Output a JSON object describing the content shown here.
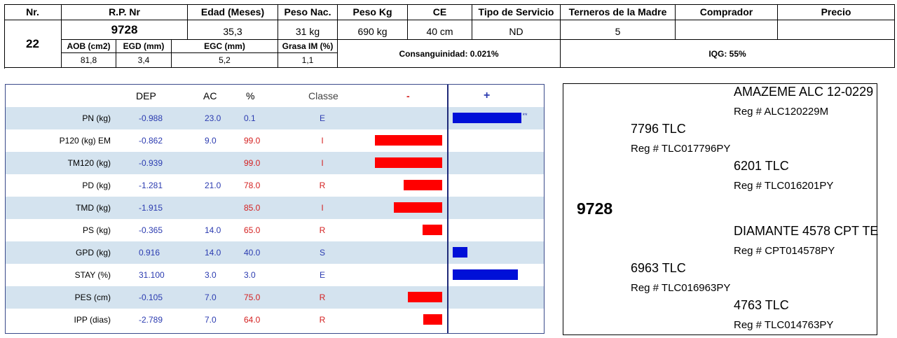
{
  "lot": {
    "headers": {
      "nr": "Nr.",
      "rp": "R.P. Nr",
      "edad": "Edad (Meses)",
      "peso_nac": "Peso Nac.",
      "peso_kg": "Peso Kg",
      "ce": "CE",
      "tipo_servicio": "Tipo de Servicio",
      "terneros": "Terneros de la Madre",
      "comprador": "Comprador",
      "precio": "Precio"
    },
    "nr": "22",
    "rp": "9728",
    "edad": "35,3",
    "peso_nac": "31 kg",
    "peso_kg": "690 kg",
    "ce": "40 cm",
    "tipo_servicio": "ND",
    "terneros": "5",
    "comprador": "",
    "precio": "",
    "sub_headers": {
      "aob": "AOB (cm2)",
      "egd": "EGD (mm)",
      "egc": "EGC (mm)",
      "grasa": "Grasa IM (%)"
    },
    "aob": "81,8",
    "egd": "3,4",
    "egc": "5,2",
    "grasa": "1,1",
    "consanguinidad": "Consanguinidad: 0.021%",
    "iqg": "IQG: 55%"
  },
  "epd": {
    "headers": {
      "dep": "DEP",
      "ac": "AC",
      "pct": "%",
      "classe": "Classe",
      "minus": "-",
      "plus": "+"
    },
    "rows": [
      {
        "trait": "PN (kg)",
        "dep": "-0.988",
        "ac": "23.0",
        "pct": "0.1",
        "classe": "E",
        "bar": 0.65,
        "note": "**",
        "color": "blue"
      },
      {
        "trait": "P120 (kg) EM",
        "dep": "-0.862",
        "ac": "9.0",
        "pct": "99.0",
        "classe": "I",
        "bar": -0.64,
        "note": "",
        "color": "red"
      },
      {
        "trait": "TM120 (kg)",
        "dep": "-0.939",
        "ac": "",
        "pct": "99.0",
        "classe": "I",
        "bar": -0.64,
        "note": "",
        "color": "red"
      },
      {
        "trait": "PD (kg)",
        "dep": "-1.281",
        "ac": "21.0",
        "pct": "78.0",
        "classe": "R",
        "bar": -0.37,
        "note": "",
        "color": "red"
      },
      {
        "trait": "TMD (kg)",
        "dep": "-1.915",
        "ac": "",
        "pct": "85.0",
        "classe": "I",
        "bar": -0.46,
        "note": "",
        "color": "red"
      },
      {
        "trait": "PS (kg)",
        "dep": "-0.365",
        "ac": "14.0",
        "pct": "65.0",
        "classe": "R",
        "bar": -0.19,
        "note": "",
        "color": "red"
      },
      {
        "trait": "GPD (kg)",
        "dep": "0.916",
        "ac": "14.0",
        "pct": "40.0",
        "classe": "S",
        "bar": 0.14,
        "note": "",
        "color": "blue"
      },
      {
        "trait": "STAY (%)",
        "dep": "31.100",
        "ac": "3.0",
        "pct": "3.0",
        "classe": "E",
        "bar": 0.62,
        "note": "",
        "color": "blue"
      },
      {
        "trait": "PES (cm)",
        "dep": "-0.105",
        "ac": "7.0",
        "pct": "75.0",
        "classe": "R",
        "bar": -0.33,
        "note": "",
        "color": "red"
      },
      {
        "trait": "IPP (dias)",
        "dep": "-2.789",
        "ac": "7.0",
        "pct": "64.0",
        "classe": "R",
        "bar": -0.18,
        "note": "",
        "color": "red"
      }
    ]
  },
  "pedigree": {
    "animal": "9728",
    "sire": {
      "name": "7796 TLC",
      "reg": "Reg # TLC017796PY"
    },
    "sire_sire": {
      "name": "AMAZEME ALC 12-0229",
      "reg": "Reg # ALC120229M"
    },
    "sire_dam": {
      "name": "6201 TLC",
      "reg": "Reg # TLC016201PY"
    },
    "dam": {
      "name": "6963 TLC",
      "reg": "Reg # TLC016963PY"
    },
    "dam_sire": {
      "name": "DIAMANTE 4578 CPT TE",
      "reg": "Reg # CPT014578PY"
    },
    "dam_dam": {
      "name": "4763 TLC",
      "reg": "Reg # TLC014763PY"
    }
  }
}
